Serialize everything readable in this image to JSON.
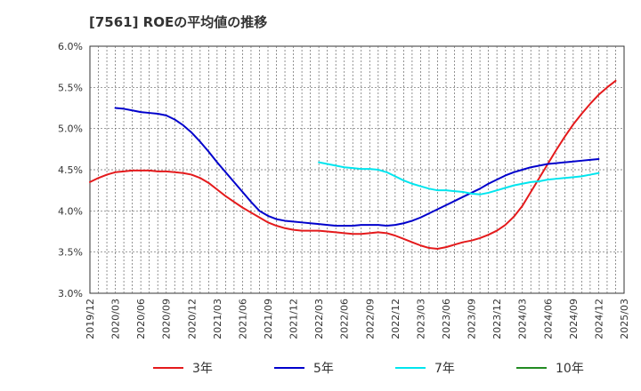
{
  "chart_data": {
    "type": "line",
    "title": "[7561]  ROEの平均値の推移",
    "xlabel": "",
    "ylabel": "",
    "ylim": [
      3.0,
      6.0
    ],
    "y_ticks": [
      "3.0%",
      "3.5%",
      "4.0%",
      "4.5%",
      "5.0%",
      "5.5%",
      "6.0%"
    ],
    "x_ticks": [
      "2019/12",
      "2020/03",
      "2020/06",
      "2020/09",
      "2020/12",
      "2021/03",
      "2021/06",
      "2021/09",
      "2021/12",
      "2022/03",
      "2022/06",
      "2022/09",
      "2022/12",
      "2023/03",
      "2023/06",
      "2023/09",
      "2023/12",
      "2024/03",
      "2024/06",
      "2024/09",
      "2024/12",
      "2025/03"
    ],
    "grid": true,
    "legend_position": "bottom",
    "series": [
      {
        "name": "3年",
        "color": "#e41a1c",
        "start_index": 0,
        "values": [
          4.35,
          4.4,
          4.44,
          4.47,
          4.48,
          4.49,
          4.49,
          4.49,
          4.48,
          4.48,
          4.47,
          4.46,
          4.44,
          4.4,
          4.34,
          4.26,
          4.18,
          4.11,
          4.04,
          3.98,
          3.92,
          3.86,
          3.82,
          3.79,
          3.77,
          3.76,
          3.76,
          3.76,
          3.75,
          3.74,
          3.73,
          3.72,
          3.72,
          3.73,
          3.74,
          3.73,
          3.7,
          3.66,
          3.62,
          3.58,
          3.55,
          3.54,
          3.56,
          3.59,
          3.62,
          3.64,
          3.67,
          3.71,
          3.76,
          3.83,
          3.93,
          4.06,
          4.23,
          4.4,
          4.57,
          4.74,
          4.9,
          5.05,
          5.18,
          5.3,
          5.41,
          5.5,
          5.58
        ]
      },
      {
        "name": "5年",
        "color": "#0000cc",
        "start_index": 3,
        "values": [
          5.25,
          5.24,
          5.22,
          5.2,
          5.19,
          5.18,
          5.16,
          5.11,
          5.04,
          4.95,
          4.84,
          4.72,
          4.59,
          4.47,
          4.35,
          4.23,
          4.11,
          4.0,
          3.94,
          3.9,
          3.88,
          3.87,
          3.86,
          3.85,
          3.84,
          3.83,
          3.82,
          3.82,
          3.82,
          3.83,
          3.83,
          3.83,
          3.82,
          3.83,
          3.85,
          3.88,
          3.92,
          3.97,
          4.02,
          4.07,
          4.12,
          4.17,
          4.22,
          4.27,
          4.33,
          4.38,
          4.43,
          4.47,
          4.5,
          4.53,
          4.55,
          4.57,
          4.58,
          4.59,
          4.6,
          4.61,
          4.62,
          4.63
        ]
      },
      {
        "name": "7年",
        "color": "#00e5ee",
        "start_index": 27,
        "values": [
          4.59,
          4.57,
          4.55,
          4.53,
          4.52,
          4.51,
          4.51,
          4.5,
          4.47,
          4.42,
          4.37,
          4.33,
          4.3,
          4.27,
          4.25,
          4.25,
          4.24,
          4.23,
          4.21,
          4.2,
          4.22,
          4.25,
          4.28,
          4.31,
          4.33,
          4.35,
          4.36,
          4.38,
          4.39,
          4.4,
          4.41,
          4.42,
          4.44,
          4.46
        ]
      },
      {
        "name": "10年",
        "color": "#228b22",
        "start_index": 0,
        "values": []
      }
    ]
  }
}
